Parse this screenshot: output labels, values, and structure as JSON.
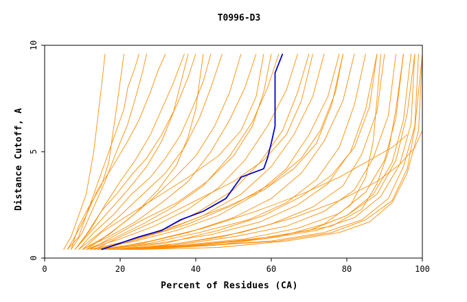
{
  "chart_data": {
    "type": "line",
    "title": "T0996-D3",
    "xlabel": "Percent of Residues (CA)",
    "ylabel": "Distance Cutoff, A",
    "xlim": [
      0,
      100
    ],
    "ylim": [
      0,
      10
    ],
    "xticks": [
      "0",
      "20",
      "40",
      "60",
      "80",
      "100"
    ],
    "yticks": [
      "0",
      "5",
      "10"
    ],
    "grid": false,
    "legend": "none",
    "colors": {
      "highlight": "#0000cc",
      "others": "#ff8c00"
    },
    "highlight": {
      "x": [
        15,
        20,
        25,
        31,
        36,
        42,
        48,
        52,
        58,
        59,
        60,
        61,
        61,
        61,
        63
      ],
      "y": [
        0.4,
        0.7,
        1.0,
        1.3,
        1.8,
        2.2,
        2.8,
        3.8,
        4.2,
        4.7,
        5.4,
        6.2,
        7.0,
        8.7,
        9.6
      ]
    },
    "others": [
      {
        "x": [
          5,
          7,
          9,
          11,
          12,
          13,
          14,
          15,
          16
        ],
        "y": [
          0.4,
          1.0,
          2.0,
          3.0,
          4.0,
          5.0,
          6.5,
          8.0,
          9.6
        ]
      },
      {
        "x": [
          6,
          9,
          11,
          13,
          15,
          17,
          19,
          21,
          22,
          24,
          25
        ],
        "y": [
          0.4,
          1.0,
          2.0,
          3.0,
          4.0,
          5.0,
          6.0,
          7.0,
          8.0,
          9.0,
          9.6
        ]
      },
      {
        "x": [
          7,
          10,
          13,
          16,
          19,
          22,
          24,
          26,
          27
        ],
        "y": [
          0.4,
          1.2,
          2.4,
          3.6,
          5.0,
          6.3,
          7.5,
          8.8,
          9.6
        ]
      },
      {
        "x": [
          6,
          8,
          11,
          14,
          18,
          22,
          25,
          28,
          30,
          32
        ],
        "y": [
          0.4,
          1.0,
          2.0,
          3.2,
          4.3,
          5.5,
          6.5,
          7.8,
          8.8,
          9.6
        ]
      },
      {
        "x": [
          8,
          12,
          16,
          20,
          24,
          28,
          31,
          34,
          37
        ],
        "y": [
          0.4,
          1.3,
          2.5,
          3.6,
          4.6,
          5.8,
          7.0,
          8.2,
          9.6
        ]
      },
      {
        "x": [
          8,
          11,
          15,
          19,
          23,
          27,
          31,
          35,
          38,
          40
        ],
        "y": [
          0.4,
          1.1,
          2.2,
          3.0,
          3.9,
          4.7,
          5.8,
          7.2,
          8.5,
          9.6
        ]
      },
      {
        "x": [
          9,
          13,
          18,
          23,
          28,
          32,
          36,
          39,
          42,
          44
        ],
        "y": [
          0.4,
          1.2,
          2.0,
          3.0,
          3.8,
          4.7,
          5.8,
          7.0,
          8.3,
          9.6
        ]
      },
      {
        "x": [
          9,
          14,
          20,
          26,
          32,
          37,
          41,
          44,
          47
        ],
        "y": [
          0.4,
          1.1,
          2.0,
          3.0,
          4.0,
          5.2,
          6.6,
          8.0,
          9.6
        ]
      },
      {
        "x": [
          10,
          16,
          22,
          28,
          34,
          40,
          45,
          49,
          52
        ],
        "y": [
          0.4,
          1.0,
          1.8,
          2.7,
          3.7,
          4.8,
          6.2,
          7.8,
          9.6
        ]
      },
      {
        "x": [
          10,
          17,
          24,
          31,
          38,
          44,
          49,
          53,
          56
        ],
        "y": [
          0.4,
          1.0,
          1.7,
          2.6,
          3.6,
          5.0,
          6.5,
          8.0,
          9.6
        ]
      },
      {
        "x": [
          11,
          18,
          26,
          34,
          42,
          49,
          55,
          59,
          62
        ],
        "y": [
          0.4,
          0.9,
          1.6,
          2.4,
          3.4,
          4.8,
          6.4,
          8.0,
          9.6
        ]
      },
      {
        "x": [
          11,
          20,
          29,
          38,
          46,
          53,
          59,
          64,
          67
        ],
        "y": [
          0.4,
          0.9,
          1.5,
          2.3,
          3.3,
          4.6,
          6.2,
          7.9,
          9.6
        ]
      },
      {
        "x": [
          12,
          22,
          32,
          41,
          50,
          57,
          63,
          67,
          70
        ],
        "y": [
          0.4,
          0.8,
          1.4,
          2.2,
          3.2,
          4.5,
          6.0,
          7.8,
          9.6
        ]
      },
      {
        "x": [
          12,
          22,
          32,
          42,
          52,
          60,
          66,
          71,
          74
        ],
        "y": [
          0.4,
          0.8,
          1.3,
          2.0,
          3.0,
          4.3,
          5.8,
          7.6,
          9.6
        ]
      },
      {
        "x": [
          13,
          24,
          35,
          46,
          56,
          64,
          70,
          75,
          78
        ],
        "y": [
          0.4,
          0.8,
          1.3,
          2.0,
          3.0,
          4.2,
          5.8,
          7.6,
          9.6
        ]
      },
      {
        "x": [
          14,
          26,
          38,
          50,
          60,
          68,
          74,
          79,
          82
        ],
        "y": [
          0.4,
          0.7,
          1.2,
          1.9,
          2.8,
          4.0,
          5.5,
          7.4,
          9.6
        ]
      },
      {
        "x": [
          15,
          28,
          41,
          54,
          64,
          72,
          78,
          82,
          85
        ],
        "y": [
          0.4,
          0.7,
          1.2,
          1.8,
          2.6,
          3.7,
          5.2,
          7.2,
          9.6
        ]
      },
      {
        "x": [
          16,
          30,
          44,
          57,
          67,
          75,
          81,
          85,
          88
        ],
        "y": [
          0.4,
          0.7,
          1.1,
          1.7,
          2.5,
          3.5,
          5.0,
          7.0,
          9.6
        ]
      },
      {
        "x": [
          17,
          32,
          47,
          60,
          71,
          79,
          84,
          88,
          90
        ],
        "y": [
          0.4,
          0.6,
          1.0,
          1.6,
          2.4,
          3.4,
          4.9,
          6.9,
          9.6
        ]
      },
      {
        "x": [
          18,
          34,
          50,
          64,
          74,
          82,
          87,
          91,
          93
        ],
        "y": [
          0.4,
          0.6,
          1.0,
          1.5,
          2.2,
          3.2,
          4.7,
          6.7,
          9.6
        ]
      },
      {
        "x": [
          19,
          36,
          53,
          67,
          78,
          85,
          90,
          93,
          95
        ],
        "y": [
          0.4,
          0.6,
          0.9,
          1.4,
          2.1,
          3.1,
          4.6,
          6.6,
          9.6
        ]
      },
      {
        "x": [
          20,
          38,
          56,
          70,
          80,
          87,
          92,
          95,
          97
        ],
        "y": [
          0.4,
          0.6,
          0.9,
          1.3,
          2.0,
          3.0,
          4.5,
          6.5,
          9.6
        ]
      },
      {
        "x": [
          21,
          40,
          58,
          72,
          82,
          89,
          94,
          97,
          98
        ],
        "y": [
          0.4,
          0.6,
          0.9,
          1.3,
          1.9,
          2.9,
          4.4,
          6.3,
          9.6
        ]
      },
      {
        "x": [
          22,
          42,
          60,
          74,
          84,
          91,
          95,
          98,
          99
        ],
        "y": [
          0.4,
          0.6,
          0.8,
          1.2,
          1.8,
          2.8,
          4.3,
          6.2,
          9.6
        ]
      },
      {
        "x": [
          23,
          44,
          62,
          76,
          85,
          92,
          96,
          98,
          100
        ],
        "y": [
          0.4,
          0.6,
          0.8,
          1.2,
          1.8,
          2.7,
          4.2,
          6.1,
          9.6
        ]
      },
      {
        "x": [
          24,
          46,
          64,
          78,
          86,
          92,
          96,
          99,
          100
        ],
        "y": [
          0.4,
          0.5,
          0.8,
          1.2,
          1.7,
          2.6,
          4.0,
          6.0,
          9.6
        ]
      },
      {
        "x": [
          20,
          40,
          60,
          76,
          84,
          88,
          91,
          93,
          95
        ],
        "y": [
          0.4,
          0.6,
          1.0,
          1.5,
          2.3,
          3.5,
          5.0,
          7.0,
          9.6
        ]
      },
      {
        "x": [
          25,
          45,
          62,
          74,
          81,
          85,
          87,
          88,
          89
        ],
        "y": [
          0.4,
          0.6,
          1.0,
          1.6,
          2.5,
          3.8,
          5.5,
          7.5,
          9.6
        ]
      },
      {
        "x": [
          15,
          25,
          38,
          50,
          60,
          68,
          73,
          77,
          79
        ],
        "y": [
          0.4,
          0.9,
          1.6,
          2.5,
          3.5,
          4.7,
          6.0,
          7.8,
          9.6
        ]
      },
      {
        "x": [
          12,
          18,
          26,
          35,
          43,
          50,
          55,
          58,
          60
        ],
        "y": [
          0.4,
          1.0,
          1.8,
          2.6,
          3.6,
          4.8,
          6.2,
          7.8,
          9.6
        ]
      },
      {
        "x": [
          8,
          12,
          17,
          22,
          27,
          31,
          34,
          36,
          38
        ],
        "y": [
          0.4,
          1.2,
          2.2,
          3.2,
          4.3,
          5.5,
          6.8,
          8.2,
          9.6
        ]
      },
      {
        "x": [
          7,
          9,
          12,
          15,
          17,
          18,
          19,
          20,
          21
        ],
        "y": [
          0.4,
          1.5,
          2.5,
          3.4,
          4.5,
          5.8,
          7.0,
          8.3,
          9.6
        ]
      },
      {
        "x": [
          10,
          15,
          22,
          30,
          38,
          46,
          52,
          56,
          58
        ],
        "y": [
          0.4,
          1.2,
          2.0,
          2.9,
          3.8,
          4.8,
          6.0,
          7.6,
          9.6
        ]
      },
      {
        "x": [
          13,
          20,
          30,
          40,
          50,
          58,
          64,
          68,
          71
        ],
        "y": [
          0.4,
          1.0,
          1.8,
          2.7,
          3.6,
          4.6,
          5.8,
          7.4,
          9.6
        ]
      },
      {
        "x": [
          14,
          24,
          36,
          48,
          58,
          66,
          72,
          76,
          79
        ],
        "y": [
          0.4,
          0.9,
          1.6,
          2.4,
          3.2,
          4.2,
          5.4,
          7.2,
          9.6
        ]
      },
      {
        "x": [
          18,
          32,
          46,
          58,
          68,
          76,
          82,
          86,
          88
        ],
        "y": [
          0.4,
          0.7,
          1.3,
          2.0,
          2.9,
          3.9,
          5.2,
          7.1,
          9.6
        ]
      },
      {
        "x": [
          22,
          40,
          56,
          70,
          80,
          88,
          93,
          96,
          98
        ],
        "y": [
          0.4,
          0.6,
          0.9,
          1.3,
          2.0,
          3.0,
          4.6,
          6.8,
          9.6
        ]
      },
      {
        "x": [
          16,
          28,
          42,
          56,
          68,
          78,
          86,
          92,
          96
        ],
        "y": [
          0.4,
          0.8,
          1.4,
          2.2,
          3.0,
          3.8,
          4.6,
          5.2,
          5.8
        ]
      },
      {
        "x": [
          20,
          36,
          52,
          66,
          78,
          88,
          94,
          98,
          100
        ],
        "y": [
          0.4,
          0.7,
          1.2,
          1.9,
          2.7,
          3.6,
          4.4,
          5.2,
          6.0
        ]
      },
      {
        "x": [
          11,
          17,
          24,
          30,
          35,
          38,
          40,
          41,
          42
        ],
        "y": [
          0.4,
          1.1,
          2.1,
          3.2,
          4.4,
          5.7,
          7.0,
          8.3,
          9.6
        ]
      }
    ]
  }
}
